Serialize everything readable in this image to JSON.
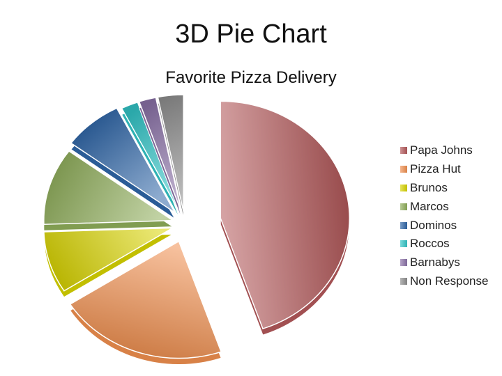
{
  "page": {
    "title": "3D Pie Chart"
  },
  "chart_data": {
    "type": "pie",
    "title": "Favorite Pizza Delivery",
    "categories": [
      "Papa Johns",
      "Pizza Hut",
      "Brunos",
      "Marcos",
      "Dominos",
      "Roccos",
      "Barnabys",
      "Non Response"
    ],
    "values": [
      42,
      20,
      8,
      10,
      7,
      2,
      2,
      3
    ],
    "colors": [
      "#b4595b",
      "#f08f4f",
      "#d8d400",
      "#8fae5a",
      "#2f66a8",
      "#33c6c8",
      "#8b72a8",
      "#8e8e8e"
    ],
    "legend_position": "right",
    "style": "3d-exploded",
    "grid": false
  }
}
